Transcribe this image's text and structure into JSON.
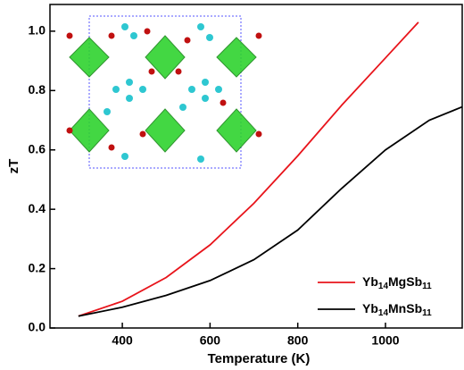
{
  "chart_data": {
    "type": "line",
    "x_label": "Temperature (K)",
    "y_label": "zT",
    "xlim": [
      235,
      1175
    ],
    "ylim": [
      0,
      1.09
    ],
    "xticks": [
      400,
      600,
      800,
      1000
    ],
    "yticks": [
      {
        "value": 0,
        "label": "0.0"
      },
      0.2,
      0.4,
      0.6,
      0.8,
      {
        "value": 1,
        "label": "1.0"
      }
    ],
    "legend": "lower right",
    "series": [
      {
        "name": "Yb14MgSb11",
        "color": "#e8141b",
        "x": [
          300,
          400,
          500,
          600,
          700,
          800,
          900,
          1000,
          1075
        ],
        "values": [
          0.04,
          0.09,
          0.17,
          0.28,
          0.42,
          0.58,
          0.75,
          0.91,
          1.03
        ]
      },
      {
        "name": "Yb14MnSb11",
        "color": "#000000",
        "x": [
          300,
          400,
          500,
          600,
          700,
          800,
          900,
          1000,
          1100,
          1175
        ],
        "values": [
          0.04,
          0.07,
          0.11,
          0.16,
          0.23,
          0.33,
          0.47,
          0.6,
          0.7,
          0.745
        ]
      }
    ]
  }
}
